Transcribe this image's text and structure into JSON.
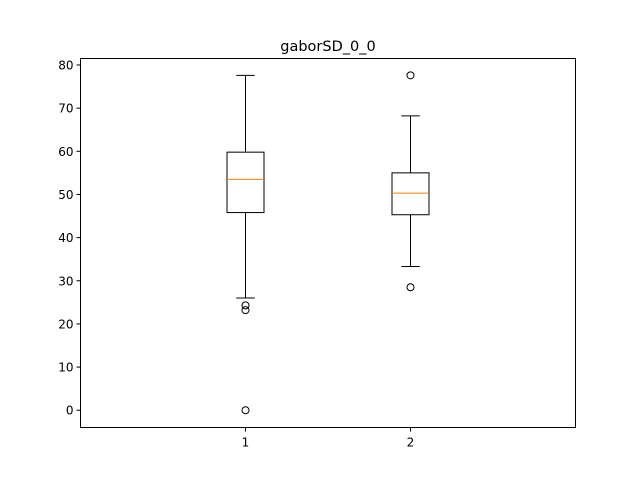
{
  "chart_data": {
    "type": "boxplot",
    "title": "gaborSD_0_0",
    "xlabel": "",
    "ylabel": "",
    "categories": [
      "1",
      "2"
    ],
    "ylim": [
      -4,
      81.5
    ],
    "yticks": [
      0,
      10,
      20,
      30,
      40,
      50,
      60,
      70,
      80
    ],
    "grid": false,
    "median_color": "#ff7f0e",
    "boxes": [
      {
        "label": "1",
        "whisker_low": 26.0,
        "q1": 45.8,
        "median": 53.5,
        "q3": 59.8,
        "whisker_high": 77.6,
        "fliers": [
          24.3,
          23.2,
          0.0
        ]
      },
      {
        "label": "2",
        "whisker_low": 33.3,
        "q1": 45.3,
        "median": 50.3,
        "q3": 55.0,
        "whisker_high": 68.2,
        "fliers": [
          77.6,
          28.5
        ]
      }
    ]
  }
}
